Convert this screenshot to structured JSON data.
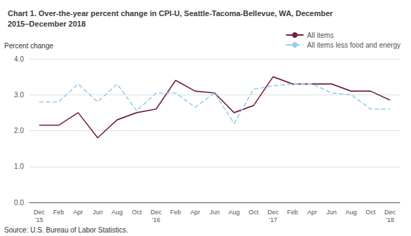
{
  "chart_data": {
    "type": "line",
    "title": "Chart 1. Over-the-year percent change in CPI-U, Seattle-Tacoma-Bellevue, WA, December\n2015–December 2018",
    "ylabel": "Percent change",
    "source": "Source: U.S. Bureau of Labor Statistics.",
    "categories": [
      "Dec\n'15",
      "Feb",
      "Apr",
      "Jun",
      "Aug",
      "Oct",
      "Dec\n'16",
      "Feb",
      "Apr",
      "Jun",
      "Aug",
      "Oct",
      "Dec\n'17",
      "Feb",
      "Apr",
      "Jun",
      "Aug",
      "Oct",
      "Dec\n'18"
    ],
    "series": [
      {
        "name": "All items",
        "color": "#722041",
        "line_style": "solid",
        "values": [
          2.15,
          2.15,
          2.5,
          1.8,
          2.3,
          2.5,
          2.6,
          3.4,
          3.1,
          3.05,
          2.5,
          2.7,
          3.5,
          3.3,
          3.3,
          3.3,
          3.1,
          3.1,
          2.85
        ]
      },
      {
        "name": "All items less food and energy",
        "color": "#99ccee",
        "line_style": "dashed",
        "values": [
          2.8,
          2.8,
          3.3,
          2.8,
          3.3,
          2.55,
          3.05,
          3.05,
          2.65,
          3.05,
          2.2,
          3.15,
          3.25,
          3.3,
          3.3,
          3.05,
          3.0,
          2.6,
          2.6
        ]
      }
    ],
    "ylim": [
      0.0,
      4.0
    ],
    "yticks": [
      {
        "value": 0,
        "label": "0.0"
      },
      {
        "value": 1,
        "label": "1.0"
      },
      {
        "value": 2,
        "label": "2.0"
      },
      {
        "value": 3,
        "label": "3.0"
      },
      {
        "value": 4,
        "label": "4.0"
      }
    ],
    "grid": true,
    "legend": "upper right"
  }
}
